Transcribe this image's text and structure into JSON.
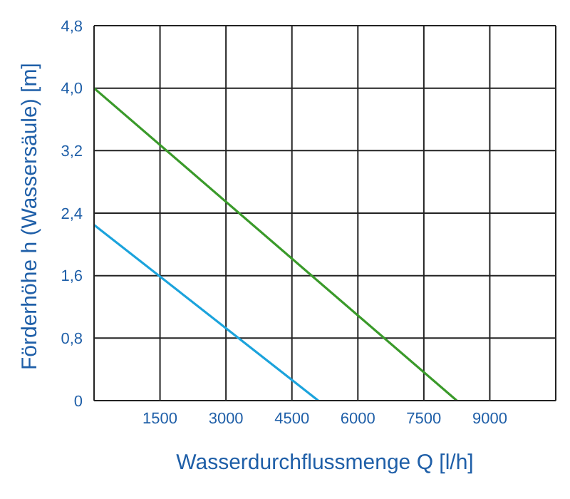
{
  "chart_data": {
    "type": "line",
    "xlabel": "Wasserdurchflussmenge Q [l/h]",
    "ylabel": "Förderhöhe h (Wassersäule) [m]",
    "series": [
      {
        "color": "#3a9a2a",
        "x": [
          0,
          8250
        ],
        "values": [
          4.0,
          0
        ]
      },
      {
        "color": "#1ba3dc",
        "x": [
          0,
          5100
        ],
        "values": [
          2.25,
          0
        ]
      }
    ],
    "xlim": [
      0,
      10500
    ],
    "xticks": [
      {
        "value": 0,
        "label": null
      },
      1500,
      3000,
      4500,
      6000,
      7500,
      9000,
      {
        "value": 10500,
        "label": null
      }
    ],
    "ylim": [
      0,
      4.8
    ],
    "yticks": [
      0,
      {
        "value": 0.8,
        "label": "0,8"
      },
      {
        "value": 1.6,
        "label": "1,6"
      },
      {
        "value": 2.4,
        "label": "2,4"
      },
      {
        "value": 3.2,
        "label": "3,2"
      },
      {
        "value": 4.0,
        "label": "4,0"
      },
      {
        "value": 4.8,
        "label": "4,8"
      }
    ],
    "grid": true,
    "marker": "none"
  }
}
